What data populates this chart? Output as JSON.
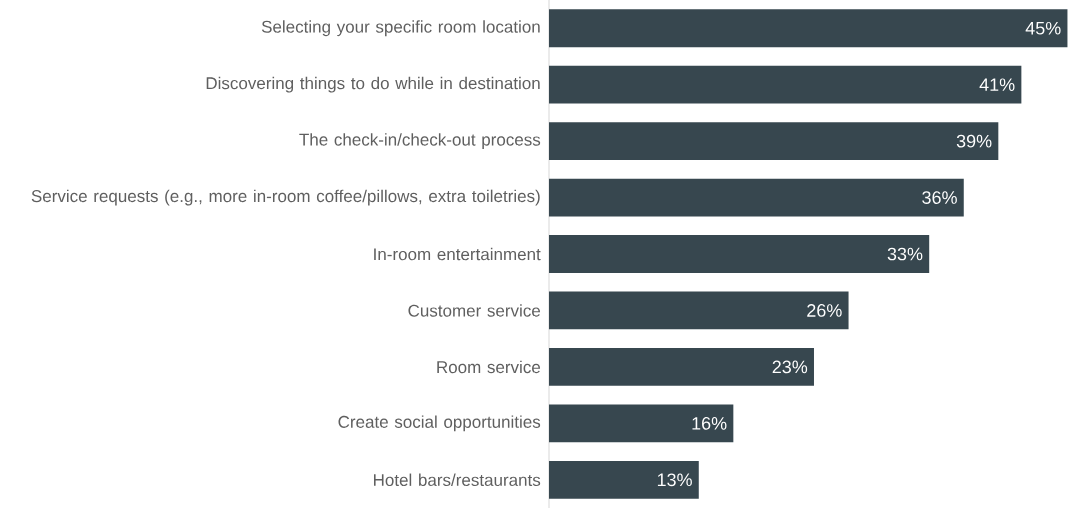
{
  "chart_data": {
    "type": "bar",
    "orientation": "horizontal",
    "categories": [
      "Selecting your specific room location",
      "Discovering things to do while in destination",
      "The check-in/check-out process",
      "Service requests (e.g., more in-room coffee/pillows, extra toiletries)",
      "In-room entertainment",
      "Customer service",
      "Room service",
      "Create social opportunities",
      "Hotel bars/restaurants"
    ],
    "values": [
      45,
      41,
      39,
      36,
      33,
      26,
      23,
      16,
      13
    ],
    "value_labels": [
      "45%",
      "41%",
      "39%",
      "36%",
      "33%",
      "26%",
      "23%",
      "16%",
      "13%"
    ],
    "color": "#37474f"
  }
}
